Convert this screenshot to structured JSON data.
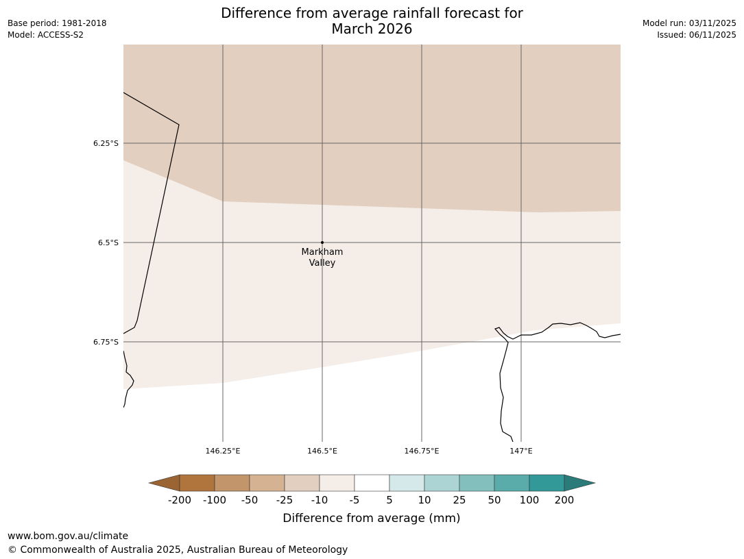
{
  "header": {
    "title_line1": "Difference from average rainfall forecast for",
    "title_line2": "March 2026",
    "base_period": "Base period: 1981-2018",
    "model": "Model: ACCESS-S2",
    "model_run": "Model run: 03/11/2025",
    "issued": "Issued: 06/11/2025"
  },
  "map": {
    "lat_labels": [
      "6.25°S",
      "6.5°S",
      "6.75°S"
    ],
    "lon_labels": [
      "146.25°E",
      "146.5°E",
      "146.75°E",
      "147°E"
    ],
    "place": {
      "name_line1": "Markham",
      "name_line2": "Valley",
      "lat": -6.5,
      "lon": 146.5
    },
    "regions": [
      {
        "category": "-25 to -10",
        "color": "#e2cfbf"
      },
      {
        "category": "-10 to -5",
        "color": "#f4ede8"
      },
      {
        "category": "-5 to 5",
        "color": "#ffffff"
      }
    ]
  },
  "legend": {
    "title": "Difference from average (mm)",
    "ticks": [
      "-200",
      "-100",
      "-50",
      "-25",
      "-10",
      "-5",
      "5",
      "10",
      "25",
      "50",
      "100",
      "200"
    ],
    "colors": [
      "#9a6433",
      "#b0743d",
      "#c2956b",
      "#d4b292",
      "#e2cfbf",
      "#f4ede8",
      "#ffffff",
      "#d5e9ea",
      "#acd4d4",
      "#83c0bd",
      "#5aacab",
      "#339998",
      "#2a7b79"
    ]
  },
  "footer": {
    "url": "www.bom.gov.au/climate",
    "copyright": "© Commonwealth of Australia 2025, Australian Bureau of Meteorology"
  }
}
